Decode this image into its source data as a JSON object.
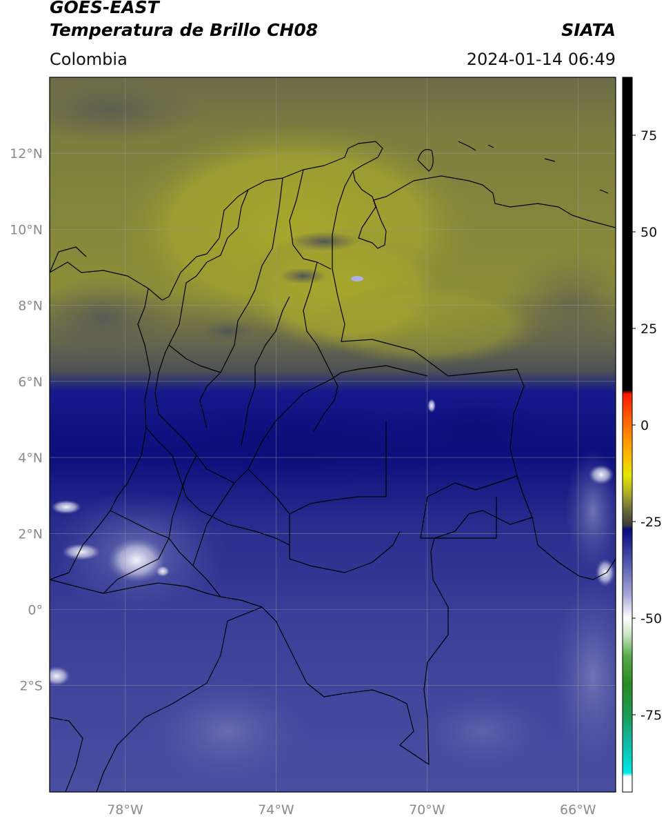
{
  "header": {
    "satellite": "GOES-EAST",
    "product": "Temperatura de Brillo CH08",
    "region": "Colombia",
    "agency": "SIATA",
    "timestamp": "2024-01-14 06:49"
  },
  "map": {
    "lon_range": [
      -80,
      -65
    ],
    "lat_range": [
      -4.8,
      14
    ],
    "grid": true,
    "lat_ticks": [
      {
        "value": 12,
        "label": "12°N"
      },
      {
        "value": 10,
        "label": "10°N"
      },
      {
        "value": 8,
        "label": "8°N"
      },
      {
        "value": 6,
        "label": "6°N"
      },
      {
        "value": 4,
        "label": "4°N"
      },
      {
        "value": 2,
        "label": "2°N"
      },
      {
        "value": 0,
        "label": "0°"
      },
      {
        "value": -2,
        "label": "2°S"
      }
    ],
    "lon_ticks": [
      {
        "value": -78,
        "label": "78°W"
      },
      {
        "value": -74,
        "label": "74°W"
      },
      {
        "value": -70,
        "label": "70°W"
      },
      {
        "value": -66,
        "label": "66°W"
      }
    ]
  },
  "colorbar": {
    "range": [
      -95,
      90
    ],
    "ticks": [
      {
        "value": 75,
        "label": "75"
      },
      {
        "value": 50,
        "label": "50"
      },
      {
        "value": 25,
        "label": "25"
      },
      {
        "value": 0,
        "label": "0"
      },
      {
        "value": -25,
        "label": "-25"
      },
      {
        "value": -50,
        "label": "-50"
      },
      {
        "value": -75,
        "label": "-75"
      }
    ],
    "stops": [
      {
        "value": -95,
        "color": "#ffffff"
      },
      {
        "value": -91,
        "color": "#ffffff"
      },
      {
        "value": -90,
        "color": "#00e5e5"
      },
      {
        "value": -82,
        "color": "#10b9a3"
      },
      {
        "value": -75,
        "color": "#1b9a55"
      },
      {
        "value": -67,
        "color": "#2a8a25"
      },
      {
        "value": -60,
        "color": "#55a84a"
      },
      {
        "value": -54,
        "color": "#cfe6c8"
      },
      {
        "value": -50,
        "color": "#ffffff"
      },
      {
        "value": -44,
        "color": "#a6a8d6"
      },
      {
        "value": -37,
        "color": "#6064b5"
      },
      {
        "value": -30,
        "color": "#20248e"
      },
      {
        "value": -27,
        "color": "#0a0c7a"
      },
      {
        "value": -26,
        "color": "#3a3a3a"
      },
      {
        "value": -22,
        "color": "#6a6a3a"
      },
      {
        "value": -18,
        "color": "#a8a82a"
      },
      {
        "value": -13,
        "color": "#e6e600"
      },
      {
        "value": -7,
        "color": "#ffb000"
      },
      {
        "value": 0,
        "color": "#ff7000"
      },
      {
        "value": 8,
        "color": "#ff1a00"
      },
      {
        "value": 9,
        "color": "#000000"
      },
      {
        "value": 90,
        "color": "#000000"
      }
    ]
  },
  "palette": {
    "yellow_bright": "#a3a42e",
    "yellow_mid": "#8f8f38",
    "olive_dark": "#6e6f42",
    "gray_dark": "#55574c",
    "navy": "#0e1281",
    "blue_mid": "#2d328f",
    "blue_light": "#4b4f9e",
    "lavender": "#7a7eb6",
    "white_cloud": "#e8e8f2"
  }
}
